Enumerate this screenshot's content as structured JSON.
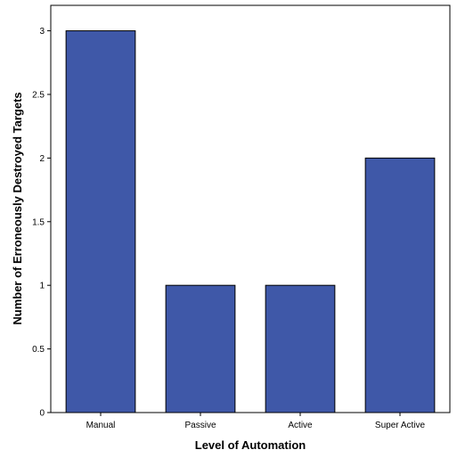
{
  "chart_data": {
    "type": "bar",
    "categories": [
      "Manual",
      "Passive",
      "Active",
      "Super Active"
    ],
    "values": [
      3,
      1,
      1,
      2
    ],
    "xlabel": "Level of Automation",
    "ylabel": "Number of Erroneously Destroyed Targets",
    "ylim": [
      0,
      3.2
    ],
    "yticks": [
      0,
      0.5,
      1,
      1.5,
      2,
      2.5,
      3
    ],
    "ytick_labels": [
      "0",
      "0.5",
      "1",
      "1.5",
      "2",
      "2.5",
      "3"
    ],
    "grid": false,
    "colors": {
      "bar": "#3f58a8",
      "bar_edge": "#000000",
      "axis": "#000000"
    }
  }
}
